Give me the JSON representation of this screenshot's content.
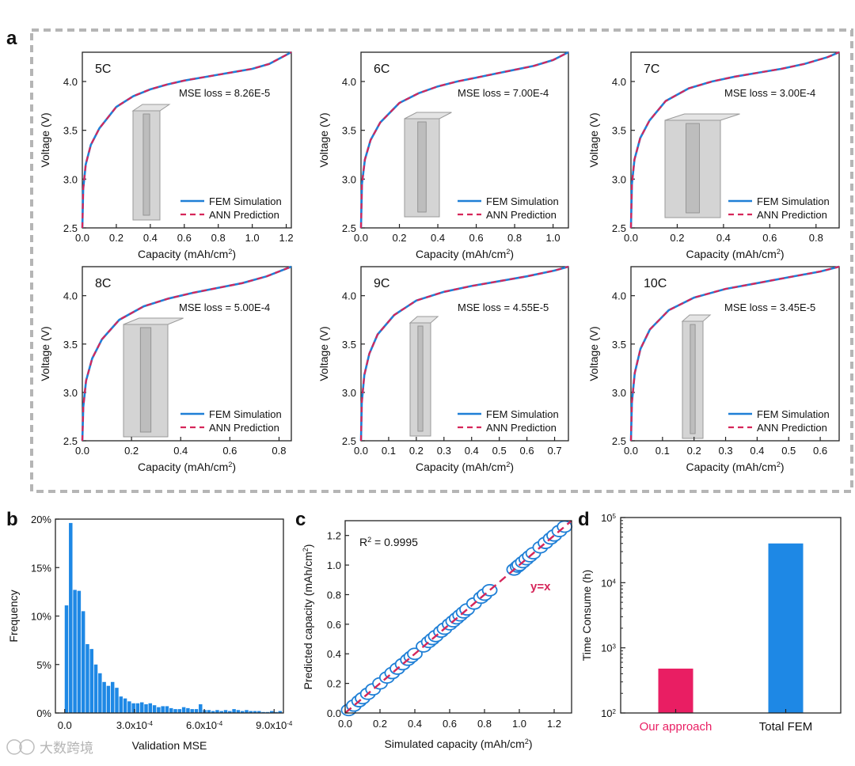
{
  "panel_labels": {
    "a": "a",
    "b": "b",
    "c": "c",
    "d": "d"
  },
  "legend": {
    "fem": "FEM Simulation",
    "ann": "ANN Prediction"
  },
  "colors": {
    "fem": "#1f7fd6",
    "ann": "#d6265a",
    "hist": "#1e88e5",
    "ours": "#e91e63",
    "total": "#1e88e5",
    "frame": "#b5b5b5"
  },
  "watermark": "大数跨境",
  "chart_data": [
    {
      "type": "line",
      "panel": "a",
      "title": "5C",
      "annotation": "MSE loss = 8.26E-5",
      "xlabel": "Capacity (mAh/cm",
      "xlabel_sup": "2",
      "xlabel_tail": ")",
      "ylabel": "Voltage (V)",
      "xlim": [
        0,
        1.23
      ],
      "ylim": [
        2.5,
        4.3
      ],
      "xticks": [
        "0.0",
        "0.2",
        "0.4",
        "0.6",
        "0.8",
        "1.0",
        "1.2"
      ],
      "yticks": [
        "2.5",
        "3.0",
        "3.5",
        "4.0"
      ],
      "series": [
        {
          "name": "FEM Simulation",
          "x": [
            0,
            0.005,
            0.02,
            0.05,
            0.1,
            0.2,
            0.3,
            0.4,
            0.5,
            0.6,
            0.7,
            0.8,
            0.9,
            1.0,
            1.1,
            1.23
          ],
          "y": [
            2.5,
            2.9,
            3.15,
            3.35,
            3.52,
            3.74,
            3.85,
            3.92,
            3.97,
            4.01,
            4.04,
            4.07,
            4.1,
            4.13,
            4.18,
            4.3
          ]
        },
        {
          "name": "ANN Prediction",
          "x": [
            0,
            0.005,
            0.02,
            0.05,
            0.1,
            0.2,
            0.3,
            0.4,
            0.5,
            0.6,
            0.7,
            0.8,
            0.9,
            1.0,
            1.1,
            1.23
          ],
          "y": [
            2.5,
            2.9,
            3.15,
            3.35,
            3.52,
            3.74,
            3.85,
            3.92,
            3.97,
            4.01,
            4.04,
            4.07,
            4.1,
            4.13,
            4.18,
            4.3
          ]
        }
      ]
    },
    {
      "type": "line",
      "panel": "a",
      "title": "6C",
      "annotation": "MSE loss = 7.00E-4",
      "xlabel": "Capacity (mAh/cm",
      "xlabel_sup": "2",
      "xlabel_tail": ")",
      "ylabel": "Voltage (V)",
      "xlim": [
        0,
        1.08
      ],
      "ylim": [
        2.5,
        4.3
      ],
      "xticks": [
        "0.0",
        "0.2",
        "0.4",
        "0.6",
        "0.8",
        "1.0"
      ],
      "yticks": [
        "2.5",
        "3.0",
        "3.5",
        "4.0"
      ],
      "series": [
        {
          "name": "FEM Simulation",
          "x": [
            0,
            0.005,
            0.02,
            0.05,
            0.1,
            0.2,
            0.3,
            0.4,
            0.5,
            0.6,
            0.7,
            0.8,
            0.9,
            1.0,
            1.08
          ],
          "y": [
            2.5,
            2.95,
            3.2,
            3.4,
            3.58,
            3.78,
            3.88,
            3.95,
            4.0,
            4.04,
            4.08,
            4.12,
            4.16,
            4.22,
            4.3
          ]
        },
        {
          "name": "ANN Prediction",
          "x": [
            0,
            0.005,
            0.02,
            0.05,
            0.1,
            0.2,
            0.3,
            0.4,
            0.5,
            0.6,
            0.7,
            0.8,
            0.9,
            1.0,
            1.08
          ],
          "y": [
            2.5,
            2.95,
            3.2,
            3.4,
            3.58,
            3.78,
            3.88,
            3.95,
            4.0,
            4.04,
            4.08,
            4.12,
            4.16,
            4.22,
            4.3
          ]
        }
      ]
    },
    {
      "type": "line",
      "panel": "a",
      "title": "7C",
      "annotation": "MSE loss = 3.00E-4",
      "xlabel": "Capacity (mAh/cm",
      "xlabel_sup": "2",
      "xlabel_tail": ")",
      "ylabel": "Voltage (V)",
      "xlim": [
        0,
        0.9
      ],
      "ylim": [
        2.5,
        4.3
      ],
      "xticks": [
        "0.0",
        "0.2",
        "0.4",
        "0.6",
        "0.8"
      ],
      "yticks": [
        "2.5",
        "3.0",
        "3.5",
        "4.0"
      ],
      "series": [
        {
          "name": "FEM Simulation",
          "x": [
            0,
            0.004,
            0.015,
            0.04,
            0.08,
            0.15,
            0.25,
            0.35,
            0.45,
            0.55,
            0.65,
            0.75,
            0.85,
            0.9
          ],
          "y": [
            2.5,
            2.95,
            3.2,
            3.42,
            3.6,
            3.8,
            3.93,
            4.0,
            4.05,
            4.09,
            4.13,
            4.18,
            4.25,
            4.3
          ]
        },
        {
          "name": "ANN Prediction",
          "x": [
            0,
            0.004,
            0.015,
            0.04,
            0.08,
            0.15,
            0.25,
            0.35,
            0.45,
            0.55,
            0.65,
            0.75,
            0.85,
            0.9
          ],
          "y": [
            2.5,
            2.95,
            3.2,
            3.42,
            3.6,
            3.8,
            3.93,
            4.0,
            4.05,
            4.09,
            4.13,
            4.18,
            4.25,
            4.3
          ]
        }
      ]
    },
    {
      "type": "line",
      "panel": "a",
      "title": "8C",
      "annotation": "MSE loss = 5.00E-4",
      "xlabel": "Capacity (mAh/cm",
      "xlabel_sup": "2",
      "xlabel_tail": ")",
      "ylabel": "Voltage (V)",
      "xlim": [
        0,
        0.85
      ],
      "ylim": [
        2.5,
        4.3
      ],
      "xticks": [
        "0.0",
        "0.2",
        "0.4",
        "0.6",
        "0.8"
      ],
      "yticks": [
        "2.5",
        "3.0",
        "3.5",
        "4.0"
      ],
      "series": [
        {
          "name": "FEM Simulation",
          "x": [
            0,
            0.004,
            0.015,
            0.04,
            0.08,
            0.15,
            0.25,
            0.35,
            0.45,
            0.55,
            0.65,
            0.75,
            0.85
          ],
          "y": [
            2.5,
            2.85,
            3.12,
            3.35,
            3.55,
            3.75,
            3.89,
            3.97,
            4.03,
            4.08,
            4.13,
            4.2,
            4.3
          ]
        },
        {
          "name": "ANN Prediction",
          "x": [
            0,
            0.004,
            0.015,
            0.04,
            0.08,
            0.15,
            0.25,
            0.35,
            0.45,
            0.55,
            0.65,
            0.75,
            0.85
          ],
          "y": [
            2.5,
            2.85,
            3.12,
            3.35,
            3.55,
            3.75,
            3.89,
            3.97,
            4.03,
            4.08,
            4.13,
            4.2,
            4.3
          ]
        }
      ]
    },
    {
      "type": "line",
      "panel": "a",
      "title": "9C",
      "annotation": "MSE loss = 4.55E-5",
      "xlabel": "Capacity (mAh/cm",
      "xlabel_sup": "2",
      "xlabel_tail": ")",
      "ylabel": "Voltage (V)",
      "xlim": [
        0,
        0.75
      ],
      "ylim": [
        2.5,
        4.3
      ],
      "xticks": [
        "0.0",
        "0.1",
        "0.2",
        "0.3",
        "0.4",
        "0.5",
        "0.6",
        "0.7"
      ],
      "yticks": [
        "2.5",
        "3.0",
        "3.5",
        "4.0"
      ],
      "series": [
        {
          "name": "FEM Simulation",
          "x": [
            0,
            0.003,
            0.012,
            0.03,
            0.06,
            0.12,
            0.2,
            0.3,
            0.4,
            0.5,
            0.6,
            0.7,
            0.75
          ],
          "y": [
            2.5,
            2.9,
            3.18,
            3.4,
            3.6,
            3.8,
            3.95,
            4.04,
            4.1,
            4.15,
            4.2,
            4.26,
            4.3
          ]
        },
        {
          "name": "ANN Prediction",
          "x": [
            0,
            0.003,
            0.012,
            0.03,
            0.06,
            0.12,
            0.2,
            0.3,
            0.4,
            0.5,
            0.6,
            0.7,
            0.75
          ],
          "y": [
            2.5,
            2.9,
            3.18,
            3.4,
            3.6,
            3.8,
            3.95,
            4.04,
            4.1,
            4.15,
            4.2,
            4.26,
            4.3
          ]
        }
      ]
    },
    {
      "type": "line",
      "panel": "a",
      "title": "10C",
      "annotation": "MSE loss = 3.45E-5",
      "xlabel": "Capacity (mAh/cm",
      "xlabel_sup": "2",
      "xlabel_tail": ")",
      "ylabel": "Voltage (V)",
      "xlim": [
        0,
        0.66
      ],
      "ylim": [
        2.5,
        4.3
      ],
      "xticks": [
        "0.0",
        "0.1",
        "0.2",
        "0.3",
        "0.4",
        "0.5",
        "0.6"
      ],
      "yticks": [
        "2.5",
        "3.0",
        "3.5",
        "4.0"
      ],
      "series": [
        {
          "name": "FEM Simulation",
          "x": [
            0,
            0.003,
            0.012,
            0.03,
            0.06,
            0.12,
            0.2,
            0.3,
            0.4,
            0.5,
            0.6,
            0.66
          ],
          "y": [
            2.5,
            2.9,
            3.2,
            3.45,
            3.65,
            3.85,
            3.98,
            4.07,
            4.13,
            4.19,
            4.25,
            4.3
          ]
        },
        {
          "name": "ANN Prediction",
          "x": [
            0,
            0.003,
            0.012,
            0.03,
            0.06,
            0.12,
            0.2,
            0.3,
            0.4,
            0.5,
            0.6,
            0.66
          ],
          "y": [
            2.5,
            2.9,
            3.2,
            3.45,
            3.65,
            3.85,
            3.98,
            4.07,
            4.13,
            4.19,
            4.25,
            4.3
          ]
        }
      ]
    },
    {
      "type": "bar",
      "panel": "b",
      "xlabel": "Validation MSE",
      "ylabel": "Frequency",
      "xlim": [
        -4e-05,
        0.00094
      ],
      "ylim": [
        0,
        0.2
      ],
      "yticks": [
        "0%",
        "5%",
        "10%",
        "15%",
        "20%"
      ],
      "xticks": [
        {
          "v": 0,
          "label": "0.0"
        },
        {
          "v": 0.0003,
          "label": "3.0x10",
          "exp": "-4"
        },
        {
          "v": 0.0006,
          "label": "6.0x10",
          "exp": "-4"
        },
        {
          "v": 0.0009,
          "label": "9.0x10",
          "exp": "-4"
        }
      ],
      "bin_width": 1.8e-05,
      "bin_start": 0,
      "values": [
        0.111,
        0.196,
        0.127,
        0.126,
        0.105,
        0.071,
        0.066,
        0.05,
        0.041,
        0.032,
        0.028,
        0.032,
        0.026,
        0.017,
        0.015,
        0.012,
        0.01,
        0.01,
        0.011,
        0.009,
        0.01,
        0.008,
        0.006,
        0.007,
        0.007,
        0.005,
        0.004,
        0.004,
        0.006,
        0.005,
        0.004,
        0.004,
        0.009,
        0.003,
        0.003,
        0.002,
        0.003,
        0.002,
        0.003,
        0.002,
        0.004,
        0.003,
        0.002,
        0.003,
        0.002,
        0.002,
        0.002,
        0.001,
        0.001,
        0.002,
        0.001,
        0.002
      ]
    },
    {
      "type": "scatter",
      "panel": "c",
      "xlabel": "Simulated capacity (mAh/cm",
      "xlabel_sup": "2",
      "xlabel_tail": ")",
      "ylabel": "Predicted capacity (mAh/cm",
      "ylabel_sup": "2",
      "ylabel_tail": ")",
      "annotation": "R",
      "annotation_sup": "2",
      "annotation_tail": " = 0.9995",
      "line_label": "y=x",
      "xlim": [
        0,
        1.3
      ],
      "ylim": [
        0,
        1.3
      ],
      "xticks": [
        "0.0",
        "0.2",
        "0.4",
        "0.6",
        "0.8",
        "1.0",
        "1.2"
      ],
      "yticks": [
        "0.0",
        "0.2",
        "0.4",
        "0.6",
        "0.8",
        "1.0",
        "1.2"
      ],
      "x": [
        0.02,
        0.05,
        0.08,
        0.1,
        0.13,
        0.16,
        0.2,
        0.24,
        0.27,
        0.3,
        0.33,
        0.36,
        0.38,
        0.4,
        0.45,
        0.48,
        0.5,
        0.52,
        0.55,
        0.57,
        0.6,
        0.62,
        0.64,
        0.66,
        0.68,
        0.7,
        0.74,
        0.78,
        0.8,
        0.83,
        0.97,
        0.99,
        1.0,
        1.02,
        1.04,
        1.06,
        1.08,
        1.12,
        1.15,
        1.18,
        1.2,
        1.23,
        1.26
      ],
      "y": [
        0.02,
        0.05,
        0.08,
        0.1,
        0.13,
        0.16,
        0.2,
        0.24,
        0.27,
        0.3,
        0.33,
        0.36,
        0.38,
        0.4,
        0.45,
        0.48,
        0.5,
        0.52,
        0.55,
        0.57,
        0.6,
        0.62,
        0.64,
        0.66,
        0.68,
        0.7,
        0.74,
        0.78,
        0.8,
        0.83,
        0.97,
        0.99,
        1.0,
        1.02,
        1.04,
        1.06,
        1.08,
        1.12,
        1.15,
        1.18,
        1.2,
        1.23,
        1.26
      ]
    },
    {
      "type": "bar",
      "panel": "d",
      "yscale": "log",
      "ylabel": "Time Consume (h)",
      "ylim": [
        100,
        100000
      ],
      "yticks": [
        {
          "v": 100,
          "base": "10",
          "exp": "2"
        },
        {
          "v": 1000,
          "base": "10",
          "exp": "3"
        },
        {
          "v": 10000,
          "base": "10",
          "exp": "4"
        },
        {
          "v": 100000,
          "base": "10",
          "exp": "5"
        }
      ],
      "categories": [
        "Our approach",
        "Total FEM"
      ],
      "values": [
        480,
        40000
      ]
    }
  ]
}
